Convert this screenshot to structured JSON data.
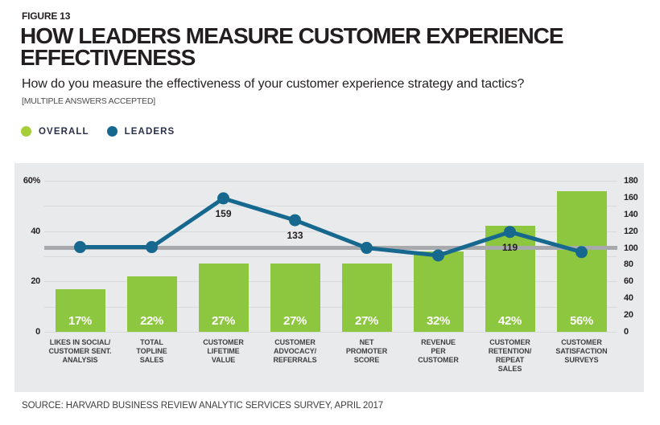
{
  "figure_label": "FIGURE 13",
  "title": "HOW LEADERS MEASURE CUSTOMER EXPERIENCE\nEFFECTIVENESS",
  "subtitle": "How do you measure the effectiveness of your customer experience strategy and tactics?",
  "note": "[MULTIPLE ANSWERS ACCEPTED]",
  "legend": [
    {
      "label": "OVERALL",
      "color": "#a6ce39"
    },
    {
      "label": "LEADERS",
      "color": "#16688f"
    }
  ],
  "source": "SOURCE: HARVARD BUSINESS REVIEW ANALYTIC SERVICES SURVEY, APRIL 2017",
  "colors": {
    "bar_green": "#8dc63f",
    "line_teal": "#16688f",
    "panel_bg": "#e8eaeb",
    "grid_line": "#d8dadb",
    "reference_gray": "#a7a9ac",
    "bar_value_text": "#ffffff",
    "axis_text": "#231f20"
  },
  "chart_data": {
    "type": "bar+line combo",
    "categories": [
      [
        "LIKES IN SOCIAL/",
        "CUSTOMER SENT.",
        "ANALYSIS"
      ],
      [
        "TOTAL",
        "TOPLINE",
        "SALES"
      ],
      [
        "CUSTOMER",
        "LIFETIME",
        "VALUE"
      ],
      [
        "CUSTOMER",
        "ADVOCACY/",
        "REFERRALS"
      ],
      [
        "NET",
        "PROMOTER",
        "SCORE"
      ],
      [
        "REVENUE",
        "PER",
        "CUSTOMER"
      ],
      [
        "CUSTOMER",
        "RETENTION/",
        "REPEAT",
        "SALES"
      ],
      [
        "CUSTOMER",
        "SATISFACTION",
        "SURVEYS"
      ]
    ],
    "series": [
      {
        "name": "OVERALL",
        "type": "bar",
        "axis": "left",
        "unit": "%",
        "color": "#8dc63f",
        "values": [
          17,
          22,
          27,
          27,
          27,
          32,
          42,
          56
        ],
        "value_labels": [
          "17%",
          "22%",
          "27%",
          "27%",
          "27%",
          "32%",
          "42%",
          "56%"
        ]
      },
      {
        "name": "LEADERS",
        "type": "line",
        "axis": "right",
        "color": "#16688f",
        "values": [
          101,
          101,
          159,
          133,
          100,
          91,
          119,
          95
        ],
        "point_labels": [
          "",
          "",
          "159",
          "133",
          "",
          "",
          "119",
          ""
        ]
      }
    ],
    "left_axis": {
      "range": [
        0,
        60
      ],
      "gridline_step": 10,
      "ticks": [
        {
          "label": "60%",
          "value": 60
        },
        {
          "label": "40",
          "value": 40
        },
        {
          "label": "20",
          "value": 20
        },
        {
          "label": "0",
          "value": 0
        }
      ]
    },
    "right_axis": {
      "range": [
        0,
        180
      ],
      "ticks": [
        {
          "label": "180",
          "value": 180
        },
        {
          "label": "160",
          "value": 160
        },
        {
          "label": "140",
          "value": 140
        },
        {
          "label": "120",
          "value": 120
        },
        {
          "label": "100",
          "value": 100
        },
        {
          "label": "80",
          "value": 80
        },
        {
          "label": "60",
          "value": 60
        },
        {
          "label": "40",
          "value": 40
        },
        {
          "label": "20",
          "value": 20
        },
        {
          "label": "0",
          "value": 0
        }
      ]
    },
    "reference_line": {
      "value": 100,
      "axis": "right",
      "color": "#a7a9ac"
    },
    "legend_position": "top-left",
    "grid": true
  }
}
